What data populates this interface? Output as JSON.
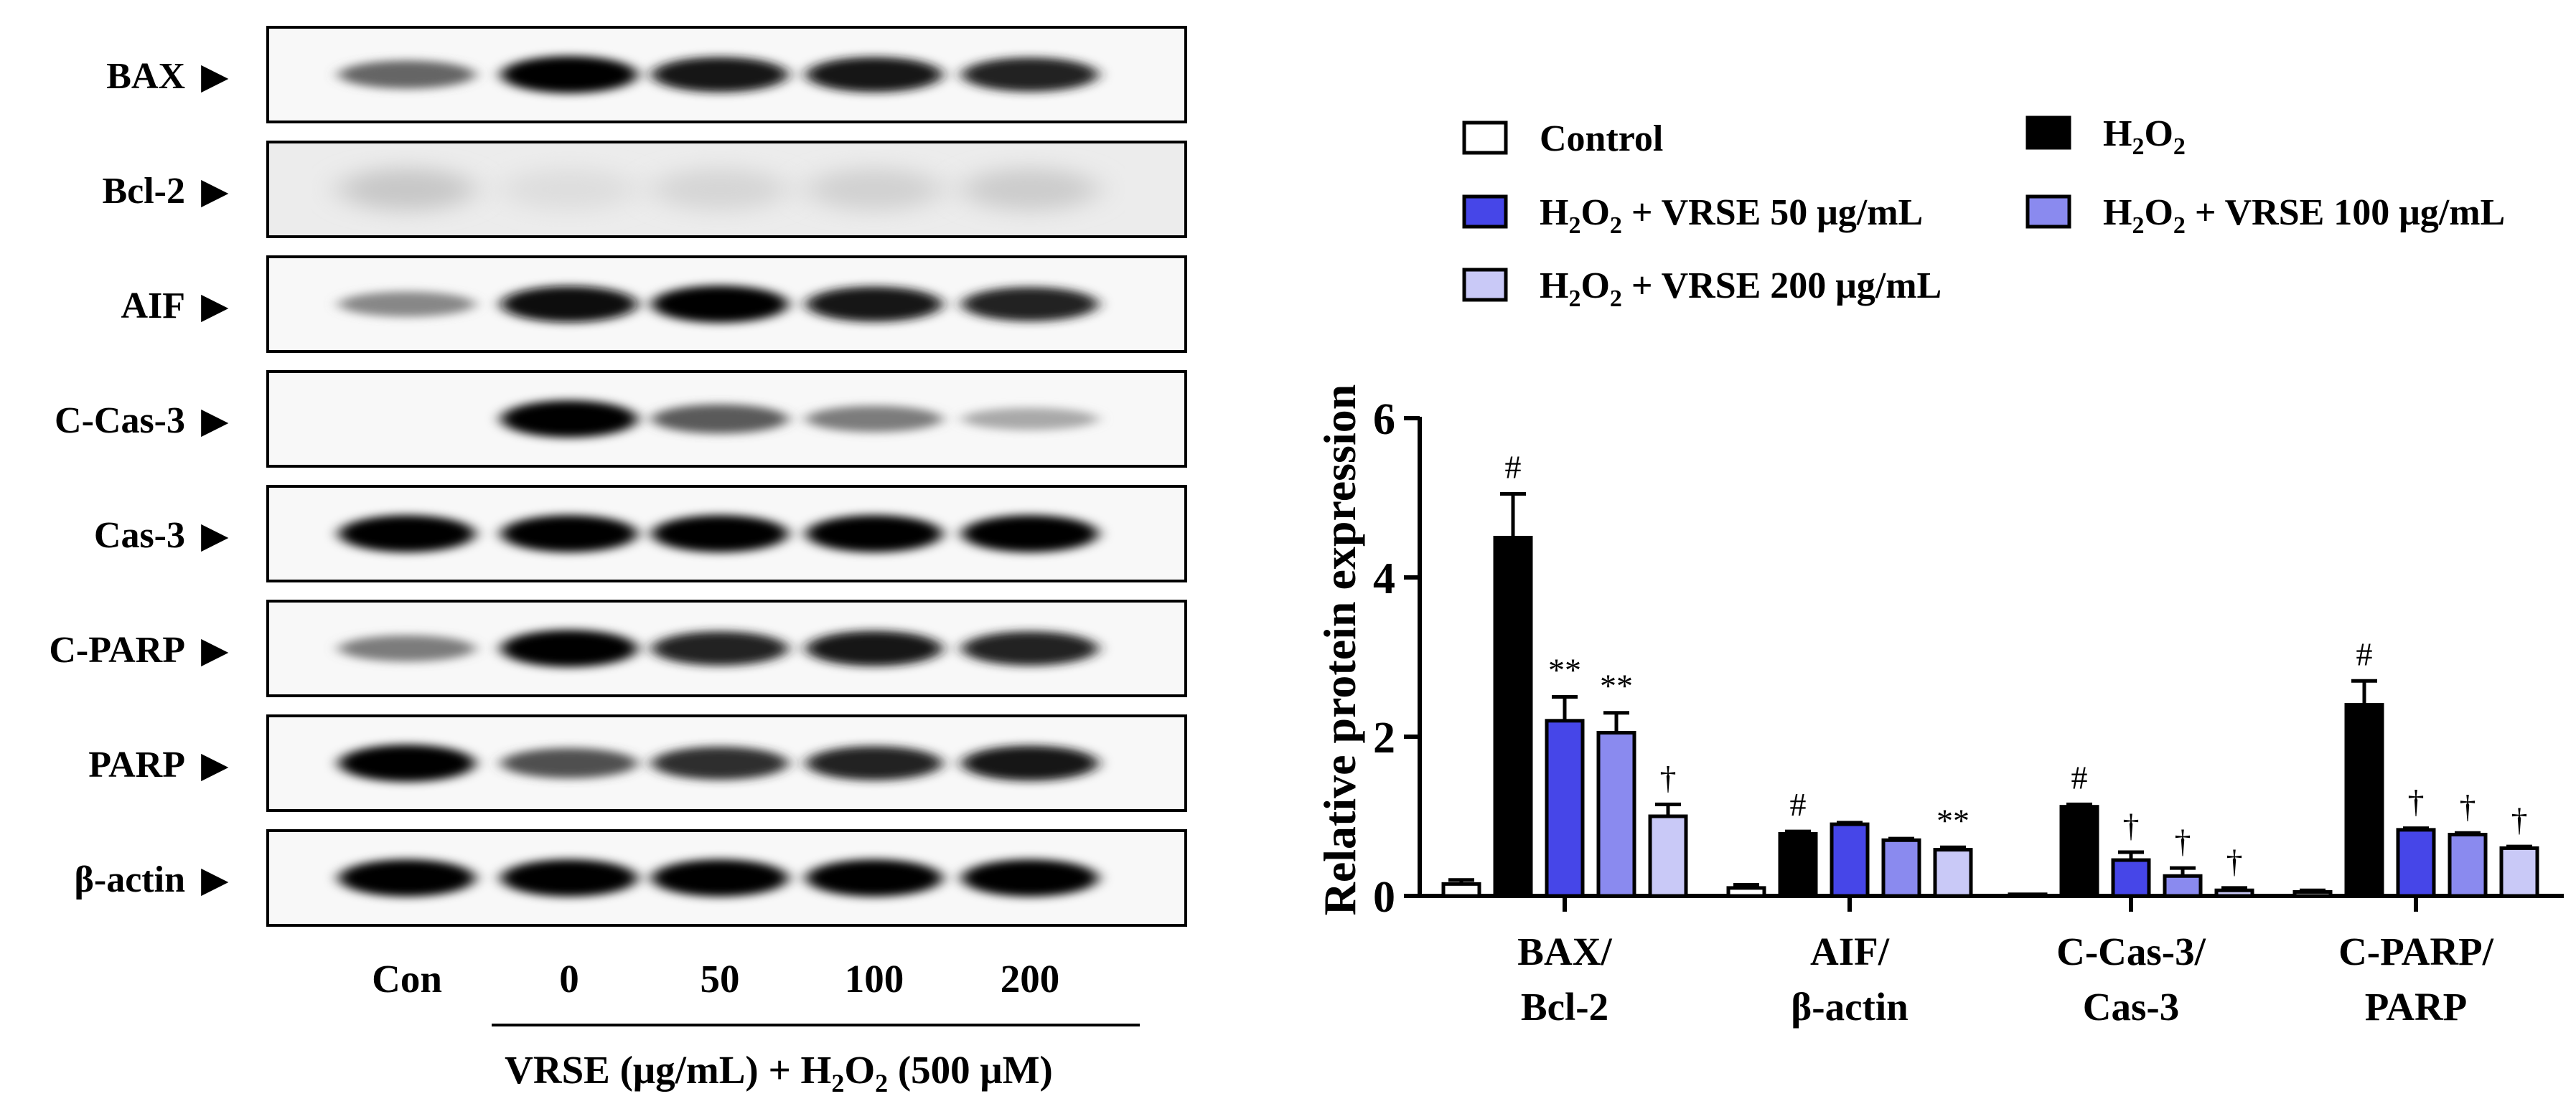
{
  "blot": {
    "rows": [
      {
        "label": "BAX",
        "marker": "▶",
        "intensities": [
          0.55,
          1.0,
          0.9,
          0.9,
          0.85
        ],
        "faint": false
      },
      {
        "label": "Bcl-2",
        "marker": "▶",
        "intensities": [
          0.28,
          0.1,
          0.16,
          0.2,
          0.24
        ],
        "faint": true
      },
      {
        "label": "AIF",
        "marker": "▶",
        "intensities": [
          0.4,
          0.95,
          1.0,
          0.9,
          0.85
        ],
        "faint": false
      },
      {
        "label": "C-Cas-3",
        "marker": "▶",
        "intensities": [
          0.0,
          1.0,
          0.6,
          0.45,
          0.25
        ],
        "faint": false
      },
      {
        "label": "Cas-3",
        "marker": "▶",
        "intensities": [
          1.0,
          1.0,
          1.0,
          1.0,
          1.0
        ],
        "faint": false
      },
      {
        "label": "C-PARP",
        "marker": "▶",
        "intensities": [
          0.45,
          1.0,
          0.85,
          0.9,
          0.85
        ],
        "faint": false
      },
      {
        "label": "PARP",
        "marker": "▶",
        "intensities": [
          1.0,
          0.65,
          0.8,
          0.85,
          0.9
        ],
        "faint": false
      },
      {
        "label": "β-actin",
        "marker": "▶",
        "intensities": [
          1.0,
          1.0,
          1.0,
          1.0,
          1.0
        ],
        "faint": false
      }
    ],
    "lanes": [
      "Con",
      "0",
      "50",
      "100",
      "200"
    ],
    "treatment_label": {
      "pre": "VRSE (μg/mL) + H",
      "sub": "2",
      "post": "O",
      "sub2": "2",
      "tail": " (500 μM)"
    }
  },
  "chart_data": {
    "type": "bar",
    "ylabel": "Relative protein expression",
    "ylim": [
      0,
      6
    ],
    "yticks": [
      "0",
      "2",
      "4",
      "6"
    ],
    "categories": [
      {
        "line1": "BAX/",
        "line2": "Bcl-2"
      },
      {
        "line1": "AIF/",
        "line2": "β-actin"
      },
      {
        "line1": "C-Cas-3/",
        "line2": "Cas-3"
      },
      {
        "line1": "C-PARP/",
        "line2": "PARP"
      }
    ],
    "series": [
      {
        "name": "Control",
        "name_parts": [
          [
            "t",
            "Control"
          ]
        ],
        "color": "#ffffff",
        "values": [
          0.15,
          0.1,
          0.02,
          0.05
        ],
        "errors": [
          0.05,
          0.04,
          0.0,
          0.02
        ],
        "annotations": [
          "",
          "",
          "",
          ""
        ]
      },
      {
        "name": "H2O2",
        "name_parts": [
          [
            "t",
            "H"
          ],
          [
            "s",
            "2"
          ],
          [
            "t",
            "O"
          ],
          [
            "s",
            "2"
          ]
        ],
        "color": "#000000",
        "values": [
          4.5,
          0.78,
          1.12,
          2.4
        ],
        "errors": [
          0.55,
          0.03,
          0.03,
          0.3
        ],
        "annotations": [
          "#",
          "#",
          "#",
          "#"
        ]
      },
      {
        "name": "H2O2 + VRSE 50 μg/mL",
        "name_parts": [
          [
            "t",
            "H"
          ],
          [
            "s",
            "2"
          ],
          [
            "t",
            "O"
          ],
          [
            "s",
            "2"
          ],
          [
            "t",
            " + VRSE 50 μg/mL"
          ]
        ],
        "color": "#4646e8",
        "values": [
          2.2,
          0.9,
          0.45,
          0.83
        ],
        "errors": [
          0.3,
          0.02,
          0.1,
          0.02
        ],
        "annotations": [
          "**",
          "",
          "†",
          "†"
        ]
      },
      {
        "name": "H2O2 + VRSE 100 μg/mL",
        "name_parts": [
          [
            "t",
            "H"
          ],
          [
            "s",
            "2"
          ],
          [
            "t",
            "O"
          ],
          [
            "s",
            "2"
          ],
          [
            "t",
            " + VRSE 100 μg/mL"
          ]
        ],
        "color": "#8a8aef",
        "values": [
          2.05,
          0.7,
          0.25,
          0.77
        ],
        "errors": [
          0.25,
          0.02,
          0.1,
          0.02
        ],
        "annotations": [
          "**",
          "",
          "†",
          "†"
        ]
      },
      {
        "name": "H2O2 + VRSE 200 μg/mL",
        "name_parts": [
          [
            "t",
            "H"
          ],
          [
            "s",
            "2"
          ],
          [
            "t",
            "O"
          ],
          [
            "s",
            "2"
          ],
          [
            "t",
            " + VRSE 200 μg/mL"
          ]
        ],
        "color": "#c9c9f7",
        "values": [
          1.0,
          0.58,
          0.07,
          0.6
        ],
        "errors": [
          0.15,
          0.03,
          0.03,
          0.02
        ],
        "annotations": [
          "†",
          "**",
          "†",
          "†"
        ]
      }
    ],
    "legend_position": "top"
  }
}
